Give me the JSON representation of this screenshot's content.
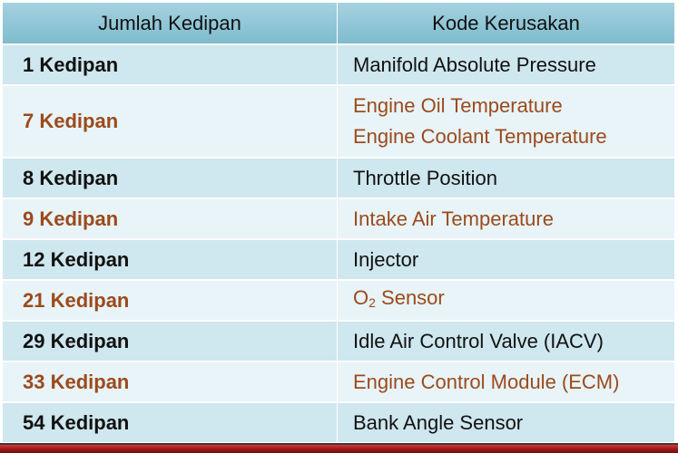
{
  "table": {
    "headers": {
      "count": "Jumlah Kedipan",
      "code": "Kode Kerusakan"
    },
    "rows": [
      {
        "count": "1 Kedipan",
        "codes": [
          "Manifold Absolute Pressure"
        ]
      },
      {
        "count": "7 Kedipan",
        "codes": [
          "Engine Oil Temperature",
          "Engine Coolant Temperature"
        ]
      },
      {
        "count": "8 Kedipan",
        "codes": [
          "Throttle Position"
        ]
      },
      {
        "count": "9 Kedipan",
        "codes": [
          "Intake Air Temperature"
        ]
      },
      {
        "count": "12 Kedipan",
        "codes": [
          "Injector"
        ]
      },
      {
        "count": "21 Kedipan",
        "code_prefix": "O",
        "code_subscript": "2",
        "code_suffix": " Sensor"
      },
      {
        "count": "29 Kedipan",
        "codes": [
          "Idle Air Control Valve (IACV)"
        ]
      },
      {
        "count": "33 Kedipan",
        "codes": [
          "Engine Control Module (ECM)"
        ]
      },
      {
        "count": "54 Kedipan",
        "codes": [
          "Bank Angle Sensor"
        ]
      }
    ]
  },
  "colors": {
    "header_bg": "#8fc6d6",
    "row_dark_bg": "#cfe7ee",
    "row_light_bg": "#e8f4f8",
    "text_dark": "#111111",
    "text_accent": "#9c4a1c",
    "bottom_rule": "#a31818"
  }
}
